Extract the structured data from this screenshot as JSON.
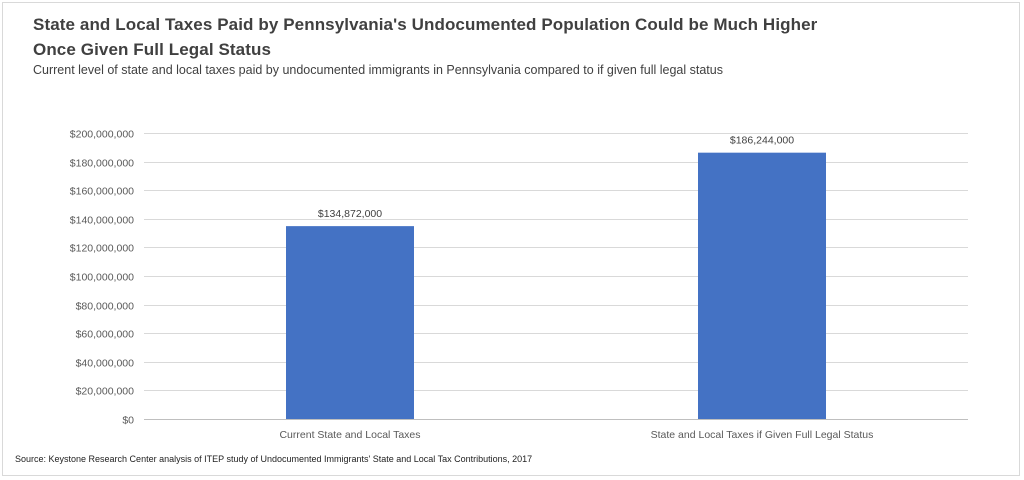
{
  "chart_data": {
    "type": "bar",
    "title": "State and Local Taxes Paid by Pennsylvania's Undocumented Population Could be Much Higher Once Given Full Legal Status",
    "subtitle": "Current level of state and local taxes paid by undocumented immigrants in Pennsylvania compared to if given full legal status",
    "categories": [
      "Current State and Local Taxes",
      "State and Local Taxes if Given Full Legal Status"
    ],
    "values": [
      134872000,
      186244000
    ],
    "data_labels": [
      "$134,872,000",
      "$186,244,000"
    ],
    "y_ticks": [
      0,
      20000000,
      40000000,
      60000000,
      80000000,
      100000000,
      120000000,
      140000000,
      160000000,
      180000000,
      200000000
    ],
    "y_tick_labels": [
      "$0",
      "$20,000,000",
      "$40,000,000",
      "$60,000,000",
      "$80,000,000",
      "$100,000,000",
      "$120,000,000",
      "$140,000,000",
      "$160,000,000",
      "$180,000,000",
      "$200,000,000"
    ],
    "ylim": [
      0,
      200000000
    ],
    "xlabel": "",
    "ylabel": "",
    "grid": true,
    "legend": "none",
    "bar_color": "#4472c4",
    "source": "Source: Keystone Research Center analysis of  ITEP study of Undocumented Immigrants' State and Local Tax Contributions, 2017"
  }
}
